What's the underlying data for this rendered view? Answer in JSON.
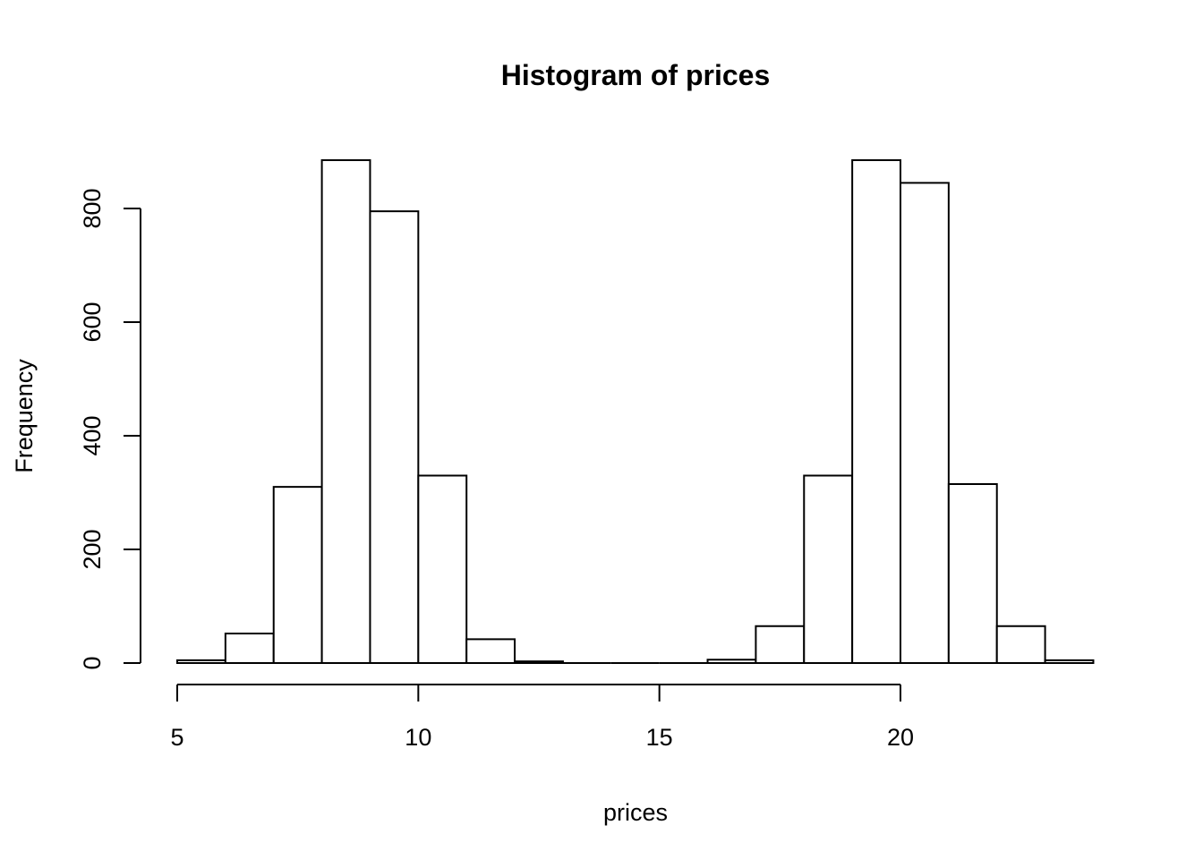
{
  "chart_data": {
    "type": "bar",
    "subtype": "histogram",
    "title": "Histogram of prices",
    "xlabel": "prices",
    "ylabel": "Frequency",
    "bin_breaks": [
      5,
      6,
      7,
      8,
      9,
      10,
      11,
      12,
      13,
      14,
      15,
      16,
      17,
      18,
      19,
      20,
      21,
      22,
      23,
      24
    ],
    "counts": [
      5,
      52,
      310,
      885,
      795,
      330,
      42,
      3,
      0,
      0,
      0,
      6,
      65,
      330,
      885,
      845,
      315,
      65,
      5
    ],
    "x_ticks": [
      5,
      10,
      15,
      20
    ],
    "y_ticks": [
      0,
      200,
      400,
      600,
      800
    ],
    "xlim": [
      5,
      24
    ],
    "ylim": [
      0,
      800
    ],
    "grid": false,
    "legend": "none",
    "bar_fill": "#ffffff",
    "stroke_color": "#000000",
    "background": "#ffffff"
  }
}
